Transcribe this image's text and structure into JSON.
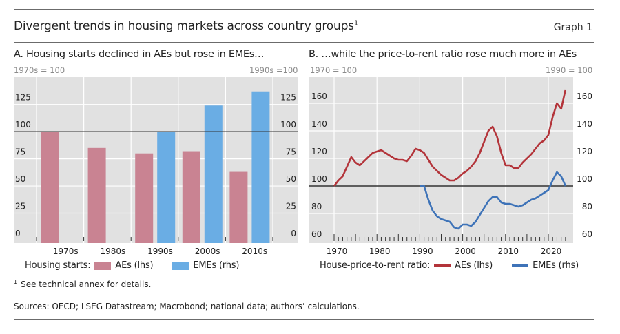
{
  "header": {
    "title": "Divergent trends in housing markets across country groups",
    "title_footnote_mark": "1",
    "graph_number": "Graph 1"
  },
  "colors": {
    "ae": "#c98392",
    "eme": "#6aade4",
    "ae_line": "#b3343a",
    "eme_line": "#3e73b8",
    "plot_bg": "#e1e1e1",
    "reference_line": "#333333"
  },
  "chart_data": [
    {
      "type": "bar",
      "panel_title": "A. Housing starts declined in AEs but rose in EMEs…",
      "left_unit": "1970s = 100",
      "right_unit": "1990s =100",
      "categories": [
        "1970s",
        "1980s",
        "1990s",
        "2000s",
        "2010s"
      ],
      "series": [
        {
          "name": "AEs (lhs)",
          "axis": "left",
          "values": [
            100,
            85,
            80,
            82,
            63
          ]
        },
        {
          "name": "EMEs (rhs)",
          "axis": "right",
          "values": [
            null,
            null,
            100,
            124,
            137
          ]
        }
      ],
      "ylim": [
        0,
        140
      ],
      "yticks": [
        0,
        25,
        50,
        75,
        100,
        125
      ],
      "ytick_labels": [
        "0",
        "25",
        "50",
        "75",
        "100",
        "125"
      ],
      "reference_line": 100,
      "grid": true,
      "legend_prefix": "Housing starts:",
      "legend_placement": "bottom"
    },
    {
      "type": "line",
      "panel_title": "B. …while the price-to-rent ratio rose much more in AEs",
      "left_unit": "1970 = 100",
      "right_unit": "1990 = 100",
      "xlim": [
        1967,
        2026
      ],
      "xticks": [
        1970,
        1980,
        1990,
        2000,
        2010,
        2020
      ],
      "xtick_labels": [
        "1970",
        "1980",
        "1990",
        "2000",
        "2010",
        "2020"
      ],
      "ylim": [
        57,
        175
      ],
      "yticks": [
        60,
        80,
        100,
        120,
        140,
        160
      ],
      "ytick_labels": [
        "60",
        "80",
        "100",
        "120",
        "140",
        "160"
      ],
      "reference_line": 100,
      "grid": true,
      "legend_prefix": "House-price-to-rent ratio:",
      "legend_placement": "bottom",
      "series": [
        {
          "name": "AEs (lhs)",
          "axis": "left",
          "x": [
            1970,
            1971,
            1972,
            1973,
            1974,
            1975,
            1976,
            1977,
            1978,
            1979,
            1980,
            1981,
            1982,
            1983,
            1984,
            1985,
            1986,
            1987,
            1988,
            1989,
            1990,
            1991,
            1992,
            1993,
            1994,
            1995,
            1996,
            1997,
            1998,
            1999,
            2000,
            2001,
            2002,
            2003,
            2004,
            2005,
            2006,
            2007,
            2008,
            2009,
            2010,
            2011,
            2012,
            2013,
            2014,
            2015,
            2016,
            2017,
            2018,
            2019,
            2020,
            2021,
            2022,
            2023,
            2024
          ],
          "y": [
            100,
            104,
            107,
            114,
            121,
            117,
            115,
            118,
            121,
            124,
            125,
            126,
            124,
            122,
            120,
            119,
            119,
            118,
            122,
            127,
            126,
            124,
            119,
            114,
            111,
            108,
            106,
            104,
            104,
            106,
            109,
            111,
            114,
            118,
            124,
            132,
            140,
            143,
            136,
            124,
            115,
            115,
            113,
            113,
            117,
            120,
            123,
            127,
            131,
            133,
            137,
            150,
            160,
            156,
            170
          ]
        },
        {
          "name": "EMEs (rhs)",
          "axis": "right",
          "x": [
            1990,
            1991,
            1992,
            1993,
            1994,
            1995,
            1996,
            1997,
            1998,
            1999,
            2000,
            2001,
            2002,
            2003,
            2004,
            2005,
            2006,
            2007,
            2008,
            2009,
            2010,
            2011,
            2012,
            2013,
            2014,
            2015,
            2016,
            2017,
            2018,
            2019,
            2020,
            2021,
            2022,
            2023,
            2024
          ],
          "y": [
            100,
            100,
            90,
            82,
            78,
            76,
            75,
            74,
            70,
            69,
            72,
            72,
            71,
            74,
            79,
            84,
            89,
            92,
            92,
            88,
            87,
            87,
            86,
            85,
            86,
            88,
            90,
            91,
            93,
            95,
            97,
            104,
            110,
            107,
            100
          ]
        }
      ]
    }
  ],
  "footnote": {
    "mark": "1",
    "text": "See technical annex for details."
  },
  "sources": "Sources: OECD; LSEG Datastream; Macrobond; national data; authors’ calculations."
}
